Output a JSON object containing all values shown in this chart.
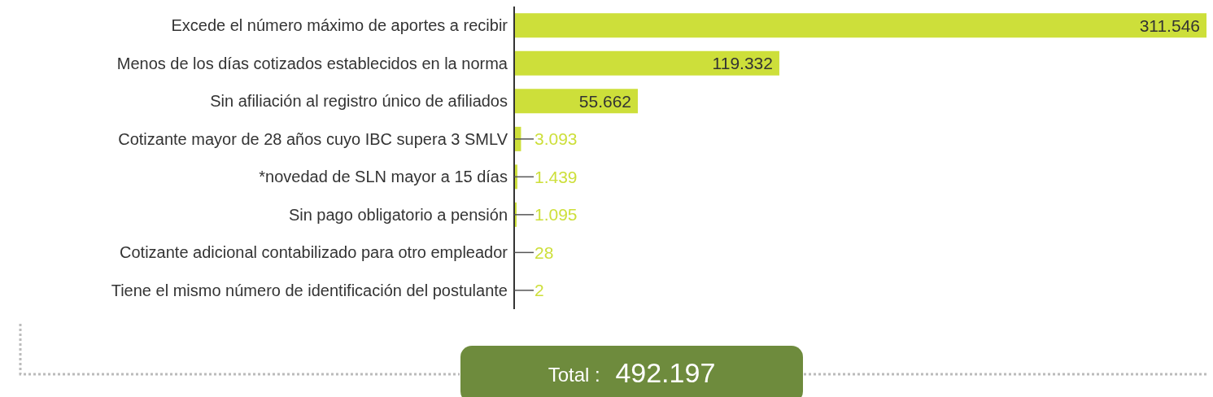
{
  "chart_data": {
    "type": "bar",
    "orientation": "horizontal",
    "categories": [
      "Excede el número máximo de aportes a recibir",
      "Menos de los días cotizados establecidos en la norma",
      "Sin afiliación al registro único de afiliados",
      "Cotizante mayor de 28 años cuyo IBC supera 3 SMLV",
      "*novedad de SLN mayor a 15 días",
      "Sin pago obligatorio a pensión",
      "Cotizante adicional contabilizado para otro empleador",
      "Tiene el mismo número de identificación del postulante"
    ],
    "values": [
      311546,
      119332,
      55662,
      3093,
      1439,
      1095,
      28,
      2
    ],
    "value_labels": [
      "311.546",
      "119.332",
      "55.662",
      "3.093",
      "1.439",
      "1.095",
      "28",
      "2"
    ],
    "color": "#cddf3a",
    "annotations": [
      "Total : 492.197"
    ]
  }
}
